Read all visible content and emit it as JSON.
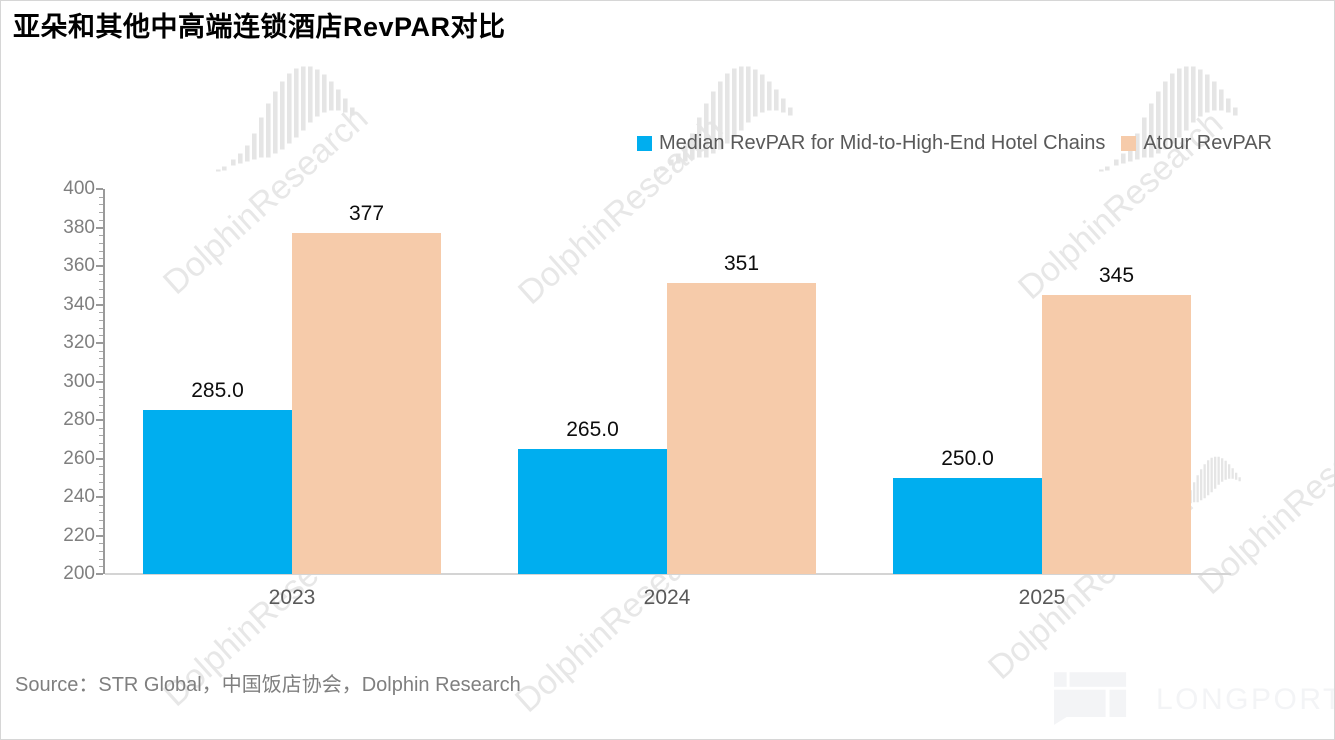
{
  "title": "亚朵和其他中高端连锁酒店RevPAR对比",
  "source": "Source：STR Global，中国饭店协会，Dolphin Research",
  "watermark": {
    "text": "DolphinResearch"
  },
  "brand": {
    "name": "LONGPORT"
  },
  "chart_data": {
    "type": "bar",
    "title": "亚朵和其他中高端连锁酒店RevPAR对比",
    "categories": [
      "2023",
      "2024",
      "2025"
    ],
    "series": [
      {
        "name": "Median RevPAR for Mid-to-High-End Hotel Chains",
        "color": "#00AEEF",
        "values": [
          285.0,
          265.0,
          250.0
        ],
        "labels": [
          "285.0",
          "265.0",
          "250.0"
        ]
      },
      {
        "name": "Atour RevPAR",
        "color": "#F6CBAA",
        "values": [
          377,
          351,
          345
        ],
        "labels": [
          "377",
          "351",
          "345"
        ]
      }
    ],
    "xlabel": "",
    "ylabel": "",
    "ylim": [
      200,
      400
    ],
    "yticks": [
      200,
      220,
      240,
      260,
      280,
      300,
      320,
      340,
      360,
      380,
      400
    ],
    "ytick_step": 20,
    "yminor_step": 4,
    "grid": false,
    "legend_position": "top-right"
  }
}
